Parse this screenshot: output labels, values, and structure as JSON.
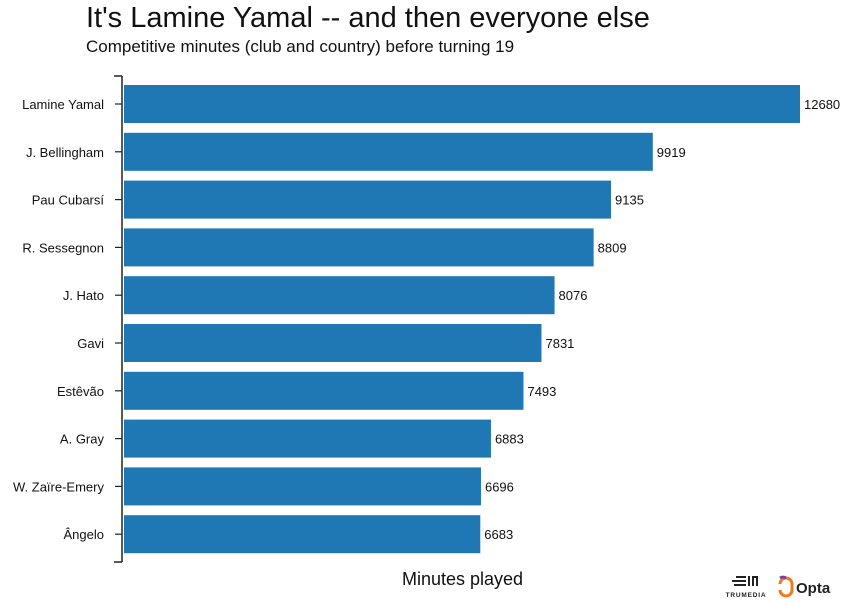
{
  "header": {
    "title": "It's Lamine Yamal -- and then everyone else",
    "subtitle": "Competitive minutes (club and country) before turning 19"
  },
  "chart_data": {
    "type": "bar",
    "orientation": "horizontal",
    "categories": [
      "Lamine Yamal",
      "J. Bellingham",
      "Pau Cubarsí",
      "R. Sessegnon",
      "J. Hato",
      "Gavi",
      "Estêvão",
      "A. Gray",
      "W. Zaïre-Emery",
      "Ângelo"
    ],
    "values": [
      12680,
      9919,
      9135,
      8809,
      8076,
      7831,
      7493,
      6883,
      6696,
      6683
    ],
    "data_labels": [
      "12680",
      "9919",
      "9135",
      "8809",
      "8076",
      "7831",
      "7493",
      "6883",
      "6696",
      "6683"
    ],
    "title": "It's Lamine Yamal -- and then everyone else",
    "subtitle": "Competitive minutes (club and country) before turning 19",
    "xlabel": "Minutes played",
    "ylabel": "",
    "xlim": [
      0,
      12680
    ],
    "grid": false,
    "legend": "none",
    "bar_color": "#1f77b4"
  },
  "branding": {
    "trumedia_label": "TRUMEDIA",
    "opta_label": "Opta"
  }
}
